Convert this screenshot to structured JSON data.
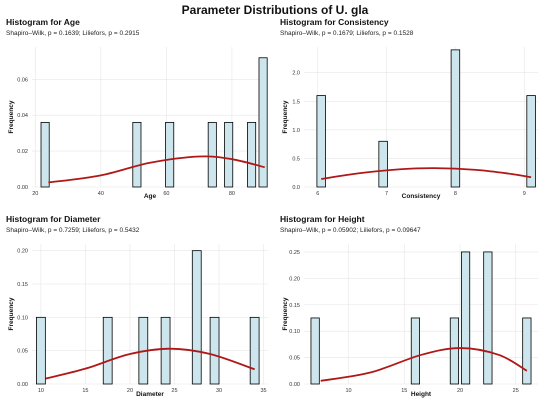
{
  "page_title": "Parameter Distributions of U. gla",
  "colors": {
    "bar_fill": "#cde6ee",
    "bar_stroke": "#000000",
    "curve": "#b01818",
    "grid": "#e6e6e6"
  },
  "chart_data": [
    {
      "type": "bar",
      "title": "Histogram for Age",
      "subtitle": "Shapiro–Wilk, p = 0.1639; Liliefors, p = 0.2915",
      "xlabel": "Age",
      "ylabel": "Frequency",
      "xlim": [
        19,
        91
      ],
      "ylim": [
        0,
        0.078
      ],
      "xticks": [
        20,
        40,
        60,
        80
      ],
      "yticks": [
        0.0,
        0.02,
        0.04,
        0.06
      ],
      "ytick_labels": [
        "0.00",
        "0.02",
        "0.04",
        "0.06"
      ],
      "bin_width": 2.5,
      "bars": [
        {
          "x": 23,
          "y": 0.036
        },
        {
          "x": 51,
          "y": 0.036
        },
        {
          "x": 61,
          "y": 0.036
        },
        {
          "x": 74,
          "y": 0.036
        },
        {
          "x": 79,
          "y": 0.036
        },
        {
          "x": 86,
          "y": 0.036
        },
        {
          "x": 89.5,
          "y": 0.072
        }
      ],
      "density_curve": [
        [
          24,
          0.0025
        ],
        [
          40,
          0.0065
        ],
        [
          55,
          0.0135
        ],
        [
          70,
          0.017
        ],
        [
          80,
          0.0155
        ],
        [
          90,
          0.011
        ]
      ]
    },
    {
      "type": "bar",
      "title": "Histogram for Consistency",
      "subtitle": "Shapiro–Wilk, p = 0.1679; Liliefors, p = 0.1528",
      "xlabel": "Consistency",
      "ylabel": "Frequency",
      "xlim": [
        5.8,
        9.2
      ],
      "ylim": [
        0,
        2.45
      ],
      "xticks": [
        6,
        7,
        8,
        9
      ],
      "yticks": [
        0.0,
        0.5,
        1.0,
        1.5,
        2.0
      ],
      "ytick_labels": [
        "0.0",
        "0.5",
        "1.0",
        "1.5",
        "2.0"
      ],
      "bin_width": 0.125,
      "bars": [
        {
          "x": 6.05,
          "y": 1.6
        },
        {
          "x": 6.95,
          "y": 0.8
        },
        {
          "x": 8.0,
          "y": 2.4
        },
        {
          "x": 9.1,
          "y": 1.6
        }
      ],
      "density_curve": [
        [
          6.05,
          0.14
        ],
        [
          6.6,
          0.24
        ],
        [
          7.2,
          0.31
        ],
        [
          7.7,
          0.33
        ],
        [
          8.3,
          0.3
        ],
        [
          8.8,
          0.23
        ],
        [
          9.1,
          0.17
        ]
      ]
    },
    {
      "type": "bar",
      "title": "Histogram for Diameter",
      "subtitle": "Shapiro–Wilk, p = 0.7259; Liliefors, p = 0.5432",
      "xlabel": "Diameter",
      "ylabel": "Frequency",
      "xlim": [
        9,
        35.5
      ],
      "ylim": [
        0,
        0.21
      ],
      "xticks": [
        10,
        15,
        20,
        25,
        30,
        35
      ],
      "yticks": [
        0.0,
        0.05,
        0.1,
        0.15,
        0.2
      ],
      "ytick_labels": [
        "0.00",
        "0.05",
        "0.10",
        "0.15",
        "0.20"
      ],
      "bin_width": 1.0,
      "bars": [
        {
          "x": 10,
          "y": 0.1
        },
        {
          "x": 17.5,
          "y": 0.1
        },
        {
          "x": 21.5,
          "y": 0.1
        },
        {
          "x": 24,
          "y": 0.1
        },
        {
          "x": 27.5,
          "y": 0.2
        },
        {
          "x": 29.5,
          "y": 0.1
        },
        {
          "x": 34,
          "y": 0.1
        }
      ],
      "density_curve": [
        [
          10.5,
          0.008
        ],
        [
          15,
          0.023
        ],
        [
          20,
          0.045
        ],
        [
          24.5,
          0.053
        ],
        [
          29,
          0.045
        ],
        [
          34,
          0.022
        ]
      ]
    },
    {
      "type": "bar",
      "title": "Histogram for Height",
      "subtitle": "Shapiro–Wilk, p = 0.05902; Liliefors, p = 0.09647",
      "xlabel": "Height",
      "ylabel": "Frequency",
      "xlim": [
        6,
        27
      ],
      "ylim": [
        0,
        0.265
      ],
      "xticks": [
        10,
        15,
        20,
        25
      ],
      "yticks": [
        0.0,
        0.05,
        0.1,
        0.15,
        0.2,
        0.25
      ],
      "ytick_labels": [
        "0.00",
        "0.05",
        "0.10",
        "0.15",
        "0.20",
        "0.25"
      ],
      "bin_width": 0.75,
      "bars": [
        {
          "x": 7,
          "y": 0.125
        },
        {
          "x": 16,
          "y": 0.125
        },
        {
          "x": 19.5,
          "y": 0.125
        },
        {
          "x": 20.5,
          "y": 0.25
        },
        {
          "x": 22.5,
          "y": 0.25
        },
        {
          "x": 26,
          "y": 0.125
        }
      ],
      "density_curve": [
        [
          7.5,
          0.006
        ],
        [
          12,
          0.022
        ],
        [
          16.5,
          0.055
        ],
        [
          20,
          0.068
        ],
        [
          23.5,
          0.055
        ],
        [
          26,
          0.025
        ]
      ]
    }
  ]
}
